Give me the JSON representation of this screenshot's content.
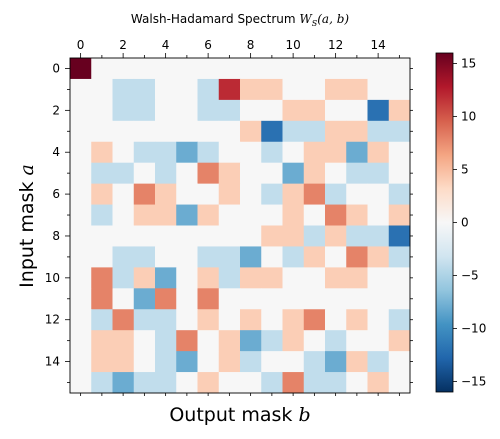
{
  "chart_data": {
    "type": "heatmap",
    "title": "Walsh-Hadamard Spectrum W_S(a, b)",
    "title_parts": {
      "plain": "Walsh-Hadamard Spectrum ",
      "math": "W",
      "sub": "S",
      "args": "(a, b)"
    },
    "xlabel": "Output mask b",
    "xlabel_parts": {
      "text": "Output mask ",
      "var": "b"
    },
    "ylabel": "Input mask a",
    "ylabel_parts": {
      "text": "Input mask ",
      "var": "a"
    },
    "xticks": [
      "0",
      "2",
      "4",
      "6",
      "8",
      "10",
      "12",
      "14"
    ],
    "yticks": [
      "0",
      "2",
      "4",
      "6",
      "8",
      "10",
      "12",
      "14"
    ],
    "x_axis_position": "top",
    "colormap": "RdBu_r",
    "vmin": -16,
    "vmax": 16,
    "colorbar_ticks": [
      "15",
      "10",
      "5",
      "0",
      "−5",
      "−10",
      "−15"
    ],
    "colorbar_tick_values": [
      15,
      10,
      5,
      0,
      -5,
      -10,
      -15
    ],
    "rows": 16,
    "cols": 16,
    "matrix": [
      [
        16,
        0,
        0,
        0,
        0,
        0,
        0,
        0,
        0,
        0,
        0,
        0,
        0,
        0,
        0,
        0
      ],
      [
        0,
        0,
        -4,
        -4,
        0,
        0,
        -4,
        12,
        4,
        4,
        0,
        0,
        4,
        4,
        0,
        0
      ],
      [
        0,
        0,
        -4,
        -4,
        0,
        0,
        -4,
        -4,
        0,
        0,
        4,
        4,
        0,
        0,
        -12,
        4
      ],
      [
        0,
        0,
        0,
        0,
        0,
        0,
        0,
        0,
        4,
        -12,
        -4,
        -4,
        4,
        4,
        -4,
        -4
      ],
      [
        0,
        4,
        0,
        -4,
        -4,
        -8,
        -4,
        0,
        0,
        -4,
        0,
        4,
        4,
        -8,
        4,
        0
      ],
      [
        0,
        -4,
        -4,
        0,
        -4,
        0,
        8,
        4,
        0,
        0,
        -8,
        4,
        0,
        -4,
        -4,
        0
      ],
      [
        0,
        4,
        0,
        8,
        4,
        0,
        0,
        4,
        0,
        -4,
        4,
        8,
        -4,
        0,
        0,
        -4
      ],
      [
        0,
        -4,
        0,
        4,
        4,
        -8,
        4,
        0,
        0,
        0,
        4,
        0,
        8,
        4,
        0,
        4
      ],
      [
        0,
        0,
        0,
        0,
        0,
        0,
        0,
        0,
        0,
        4,
        4,
        -4,
        4,
        -4,
        -4,
        -12
      ],
      [
        0,
        0,
        -4,
        -4,
        0,
        0,
        -4,
        -4,
        -8,
        0,
        -4,
        4,
        0,
        8,
        4,
        -4
      ],
      [
        0,
        8,
        -4,
        4,
        -8,
        0,
        4,
        -4,
        4,
        4,
        0,
        0,
        4,
        4,
        0,
        0
      ],
      [
        0,
        8,
        0,
        -8,
        8,
        0,
        8,
        0,
        0,
        0,
        0,
        0,
        0,
        0,
        0,
        0
      ],
      [
        0,
        -4,
        8,
        -4,
        -4,
        0,
        4,
        0,
        4,
        0,
        4,
        8,
        0,
        4,
        0,
        -4
      ],
      [
        0,
        4,
        4,
        0,
        -4,
        8,
        0,
        4,
        -8,
        -4,
        4,
        0,
        -4,
        0,
        0,
        4
      ],
      [
        0,
        4,
        4,
        0,
        -4,
        -8,
        0,
        4,
        -4,
        0,
        0,
        -4,
        -8,
        4,
        -4,
        0
      ],
      [
        0,
        -4,
        -8,
        -4,
        -4,
        0,
        4,
        0,
        0,
        -4,
        8,
        -4,
        -4,
        0,
        4,
        0
      ]
    ]
  }
}
